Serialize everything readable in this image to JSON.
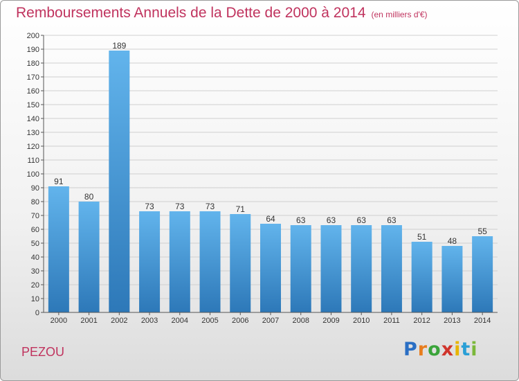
{
  "title": "Remboursements Annuels de la Dette de 2000 à 2014",
  "unit": "(en milliers d'€)",
  "commune": "PEZOU",
  "logo": {
    "letters": [
      "P",
      "r",
      "o",
      "x",
      "i",
      "t",
      "i"
    ],
    "colors": [
      "#2a6fc4",
      "#e87d1e",
      "#3aa43a",
      "#d0342c",
      "#e8b400",
      "#2a9fd6",
      "#7bb83a"
    ]
  },
  "colors": {
    "bar_light": "#62b4ec",
    "bar_dark": "#2d78b8",
    "title": "#c0335e"
  },
  "chart_data": {
    "type": "bar",
    "title": "Remboursements Annuels de la Dette de 2000 à 2014",
    "categories": [
      "2000",
      "2001",
      "2002",
      "2003",
      "2004",
      "2005",
      "2006",
      "2007",
      "2008",
      "2009",
      "2010",
      "2011",
      "2012",
      "2013",
      "2014"
    ],
    "values": [
      91,
      80,
      189,
      73,
      73,
      73,
      71,
      64,
      63,
      63,
      63,
      63,
      51,
      48,
      55
    ],
    "ylim": [
      0,
      200
    ],
    "yticks": [
      0,
      10,
      20,
      30,
      40,
      50,
      60,
      70,
      80,
      90,
      100,
      110,
      120,
      130,
      140,
      150,
      160,
      170,
      180,
      190,
      200
    ],
    "grid": true
  }
}
